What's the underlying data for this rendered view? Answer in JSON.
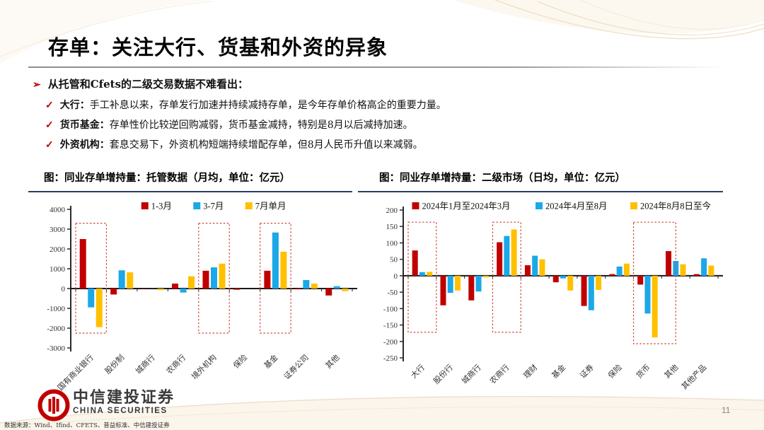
{
  "slide": {
    "title": "存单：关注大行、货基和外资的异象",
    "page_number": "11",
    "source_note": "数据来源：Wind、Ifind、CFETS、普益标准、中信建投证券"
  },
  "logo": {
    "cn": "中信建投证券",
    "en": "CHINA SECURITIES"
  },
  "intro": {
    "marker": "➢",
    "check": "✓",
    "lead": "从托管和Cfets的二级交易数据不难看出：",
    "items": [
      {
        "label": "大行：",
        "text": "手工补息以来，存单发行加速并持续减持存单，是今年存单价格高企的重要力量。"
      },
      {
        "label": "货币基金：",
        "text": "存单性价比较逆回购减弱，货币基金减持，特别是8月以后减持加速。"
      },
      {
        "label": "外资机构：",
        "text": "套息交易下，外资机构短端持续增配存单，但8月人民币升值以来减弱。"
      }
    ]
  },
  "colors": {
    "red": "#C00000",
    "blue": "#1BA8E8",
    "yellow": "#FFC000",
    "box_stroke": "#CC4B3C",
    "axis": "#2b2b2b",
    "navy_rule": "#2A3F5F"
  },
  "chart_data": [
    {
      "type": "bar",
      "title": "图：同业存单增持量：托管数据（月均，单位：亿元）",
      "unit": "亿元",
      "categories": [
        "国有商业银行",
        "股份制",
        "城商行",
        "农商行",
        "境外机构",
        "保险",
        "基金",
        "证券公司",
        "其他"
      ],
      "series": [
        {
          "name": "1-3月",
          "color": "red",
          "values": [
            2500,
            -300,
            -15,
            250,
            900,
            -60,
            900,
            -40,
            -350
          ]
        },
        {
          "name": "3-7月",
          "color": "blue",
          "values": [
            -950,
            920,
            5,
            -200,
            1070,
            0,
            2830,
            430,
            120
          ]
        },
        {
          "name": "7月单月",
          "color": "yellow",
          "values": [
            -1950,
            820,
            -80,
            620,
            1260,
            0,
            1860,
            250,
            -130
          ]
        }
      ],
      "ylim": [
        -3000,
        4000
      ],
      "ytick_step": 1000,
      "legend_position": "top",
      "grid": false,
      "highlight_boxes": [
        {
          "category": 0,
          "top": 3300,
          "bottom": -2250
        },
        {
          "category": 4,
          "top": 3300,
          "bottom": -2250
        },
        {
          "category": 6,
          "top": 3300,
          "bottom": -2250
        }
      ]
    },
    {
      "type": "bar",
      "title": "图：同业存单增持量：二级市场（日均，单位：亿元）",
      "unit": "亿元",
      "categories": [
        "大行",
        "股份行",
        "城商行",
        "农商行",
        "理财",
        "基金",
        "证券",
        "保险",
        "货币",
        "其他",
        "其他产品"
      ],
      "series": [
        {
          "name": "2024年1月至2024年3月",
          "color": "red",
          "values": [
            77,
            -90,
            -75,
            102,
            32,
            -20,
            -92,
            5,
            -27,
            75,
            5
          ]
        },
        {
          "name": "2024年4月至8月",
          "color": "blue",
          "values": [
            11,
            -52,
            -48,
            121,
            61,
            -8,
            -105,
            28,
            -115,
            45,
            53
          ]
        },
        {
          "name": "2024年8月8日至今",
          "color": "yellow",
          "values": [
            12,
            -45,
            -5,
            141,
            50,
            -45,
            -43,
            37,
            -188,
            35,
            31
          ]
        }
      ],
      "ylim": [
        -250,
        200
      ],
      "ytick_step": 50,
      "legend_position": "top",
      "grid": false,
      "highlight_boxes": [
        {
          "category": 0,
          "top": 163,
          "bottom": -172
        },
        {
          "category": 3,
          "top": 163,
          "bottom": -172
        },
        {
          "category": 8,
          "top": 163,
          "bottom": -207,
          "extend_right": 0.5
        }
      ]
    }
  ]
}
